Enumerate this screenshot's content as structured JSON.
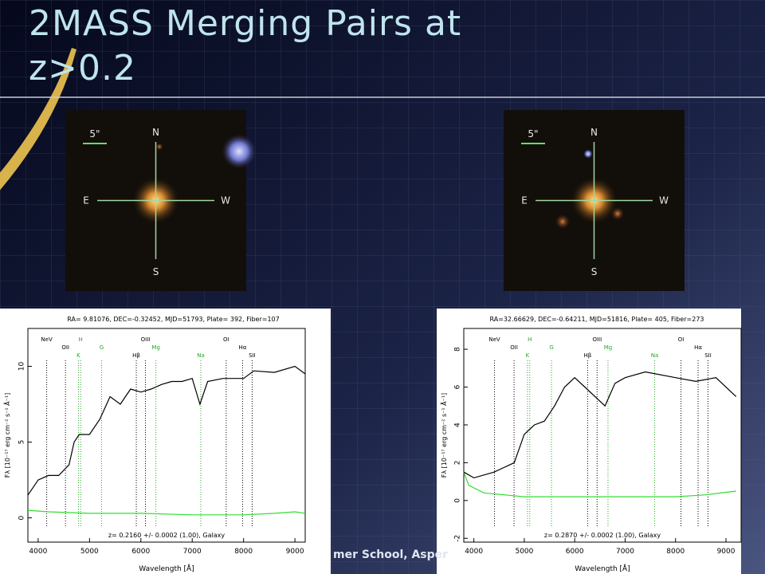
{
  "title": "2MASS Merging Pairs at z>0.2",
  "footer": "mer School, Asper",
  "images": [
    {
      "scale": "5\"",
      "north": "N",
      "south": "S",
      "east": "E",
      "west": "W"
    },
    {
      "scale": "5\"",
      "north": "N",
      "south": "S",
      "east": "E",
      "west": "W"
    }
  ],
  "spectra": [
    {
      "header": "RA= 9.81076, DEC=-0.32452, MJD=51793, Plate= 392, Fiber=107",
      "redshift": "z= 0.2160 +/- 0.0002 (1.00), Galaxy",
      "x_label": "Wavelength [Å]",
      "y_label": "Fλ [10⁻¹⁷ erg cm⁻² s⁻¹ Å⁻¹]",
      "xlim": [
        3800,
        9200
      ],
      "xticks": [
        4000,
        5000,
        6000,
        7000,
        8000,
        9000
      ],
      "ylim": [
        -1.6,
        12.5
      ],
      "yticks": [
        0,
        5,
        10
      ],
      "flux": {
        "x": [
          3800,
          4000,
          4200,
          4400,
          4600,
          4700,
          4800,
          5000,
          5200,
          5400,
          5600,
          5800,
          6000,
          6200,
          6400,
          6600,
          6800,
          7000,
          7150,
          7300,
          7600,
          8000,
          8200,
          8600,
          9000,
          9200
        ],
        "values": [
          1.5,
          2.5,
          2.8,
          2.8,
          3.5,
          5,
          5.5,
          5.5,
          6.5,
          8,
          7.5,
          8.5,
          8.3,
          8.5,
          8.8,
          9,
          9,
          9.2,
          7.5,
          9,
          9.2,
          9.2,
          9.7,
          9.6,
          10,
          9.5
        ]
      },
      "noise": {
        "x": [
          3800,
          4200,
          5000,
          6000,
          7000,
          8000,
          8600,
          9000,
          9200
        ],
        "values": [
          0.5,
          0.4,
          0.3,
          0.3,
          0.2,
          0.2,
          0.3,
          0.4,
          0.3
        ]
      },
      "lines": [
        {
          "label": "NeV",
          "x": 4166,
          "color": "#000000"
        },
        {
          "label": "OII",
          "x": 4532,
          "color": "#000000"
        },
        {
          "label": "K",
          "x": 4784,
          "color": "#22aa22"
        },
        {
          "label": "H",
          "x": 4827,
          "color": "#22aa22"
        },
        {
          "label": "G",
          "x": 5234,
          "color": "#22aa22"
        },
        {
          "label": "Hβ",
          "x": 5911,
          "color": "#000000"
        },
        {
          "label": "OIII",
          "x": 6089,
          "color": "#000000"
        },
        {
          "label": "Mg",
          "x": 6293,
          "color": "#22aa22"
        },
        {
          "label": "Na",
          "x": 7167,
          "color": "#22aa22"
        },
        {
          "label": "OI",
          "x": 7661,
          "color": "#000000"
        },
        {
          "label": "Hα",
          "x": 7981,
          "color": "#000000"
        },
        {
          "label": "SII",
          "x": 8167,
          "color": "#000000"
        }
      ]
    },
    {
      "header": "RA=32.66629, DEC=-0.64211, MJD=51816, Plate= 405, Fiber=273",
      "redshift": "z= 0.2870 +/- 0.0002 (1.00), Galaxy",
      "x_label": "Wavelength [Å]",
      "y_label": "Fλ [10⁻¹⁷ erg cm⁻² s⁻¹ Å⁻¹]",
      "xlim": [
        3800,
        9300
      ],
      "xticks": [
        4000,
        5000,
        6000,
        7000,
        8000,
        9000
      ],
      "ylim": [
        -2.2,
        9.1
      ],
      "yticks": [
        -2,
        0,
        2,
        4,
        6,
        8
      ],
      "flux": {
        "x": [
          3800,
          4000,
          4400,
          4800,
          5000,
          5200,
          5400,
          5600,
          5800,
          6000,
          6200,
          6600,
          6800,
          7000,
          7400,
          8000,
          8400,
          8800,
          9200
        ],
        "values": [
          1.5,
          1.2,
          1.5,
          2,
          3.5,
          4,
          4.2,
          5,
          6,
          6.5,
          6,
          5,
          6.2,
          6.5,
          6.8,
          6.5,
          6.3,
          6.5,
          5.5
        ]
      },
      "noise": {
        "x": [
          3800,
          3900,
          4200,
          5000,
          6000,
          7000,
          8000,
          8600,
          9200
        ],
        "values": [
          1.5,
          0.8,
          0.4,
          0.2,
          0.2,
          0.2,
          0.2,
          0.3,
          0.5
        ]
      },
      "lines": [
        {
          "label": "NeV",
          "x": 4409,
          "color": "#000000"
        },
        {
          "label": "OII",
          "x": 4797,
          "color": "#000000"
        },
        {
          "label": "K",
          "x": 5063,
          "color": "#22aa22"
        },
        {
          "label": "H",
          "x": 5108,
          "color": "#22aa22"
        },
        {
          "label": "G",
          "x": 5539,
          "color": "#22aa22"
        },
        {
          "label": "Hβ",
          "x": 6256,
          "color": "#000000"
        },
        {
          "label": "OIII",
          "x": 6444,
          "color": "#000000"
        },
        {
          "label": "Mg",
          "x": 6660,
          "color": "#22aa22"
        },
        {
          "label": "Na",
          "x": 7586,
          "color": "#22aa22"
        },
        {
          "label": "OI",
          "x": 8108,
          "color": "#000000"
        },
        {
          "label": "Hα",
          "x": 8447,
          "color": "#000000"
        },
        {
          "label": "SII",
          "x": 8644,
          "color": "#000000"
        }
      ]
    }
  ]
}
